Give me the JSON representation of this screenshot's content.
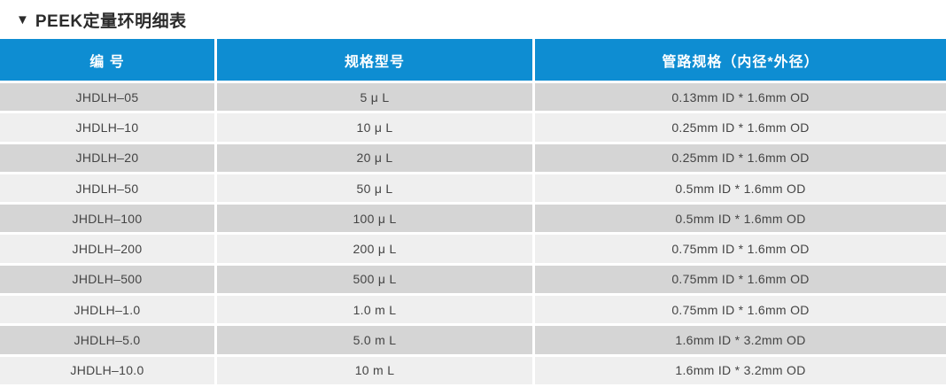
{
  "title": {
    "marker": "▼",
    "text": "PEEK定量环明细表"
  },
  "table": {
    "headers": [
      "编 号",
      "规格型号",
      "管路规格（内径*外径）"
    ],
    "rows": [
      [
        "JHDLH–05",
        "5 μ L",
        "0.13mm ID * 1.6mm OD"
      ],
      [
        "JHDLH–10",
        "10 μ L",
        "0.25mm ID * 1.6mm OD"
      ],
      [
        "JHDLH–20",
        "20 μ L",
        "0.25mm ID * 1.6mm OD"
      ],
      [
        "JHDLH–50",
        "50 μ L",
        "0.5mm ID * 1.6mm OD"
      ],
      [
        "JHDLH–100",
        "100 μ L",
        "0.5mm ID * 1.6mm OD"
      ],
      [
        "JHDLH–200",
        "200 μ L",
        "0.75mm ID * 1.6mm OD"
      ],
      [
        "JHDLH–500",
        "500 μ L",
        "0.75mm ID * 1.6mm OD"
      ],
      [
        "JHDLH–1.0",
        "1.0 m L",
        "0.75mm ID * 1.6mm OD"
      ],
      [
        "JHDLH–5.0",
        "5.0 m L",
        "1.6mm ID * 3.2mm OD"
      ],
      [
        "JHDLH–10.0",
        "10 m L",
        "1.6mm ID * 3.2mm OD"
      ]
    ]
  },
  "colors": {
    "header_bg": "#0e8dd2",
    "header_text": "#ffffff",
    "row_dark": "#d5d5d5",
    "row_light": "#efefef",
    "cell_text": "#444444",
    "title_text": "#2b2b2b"
  }
}
